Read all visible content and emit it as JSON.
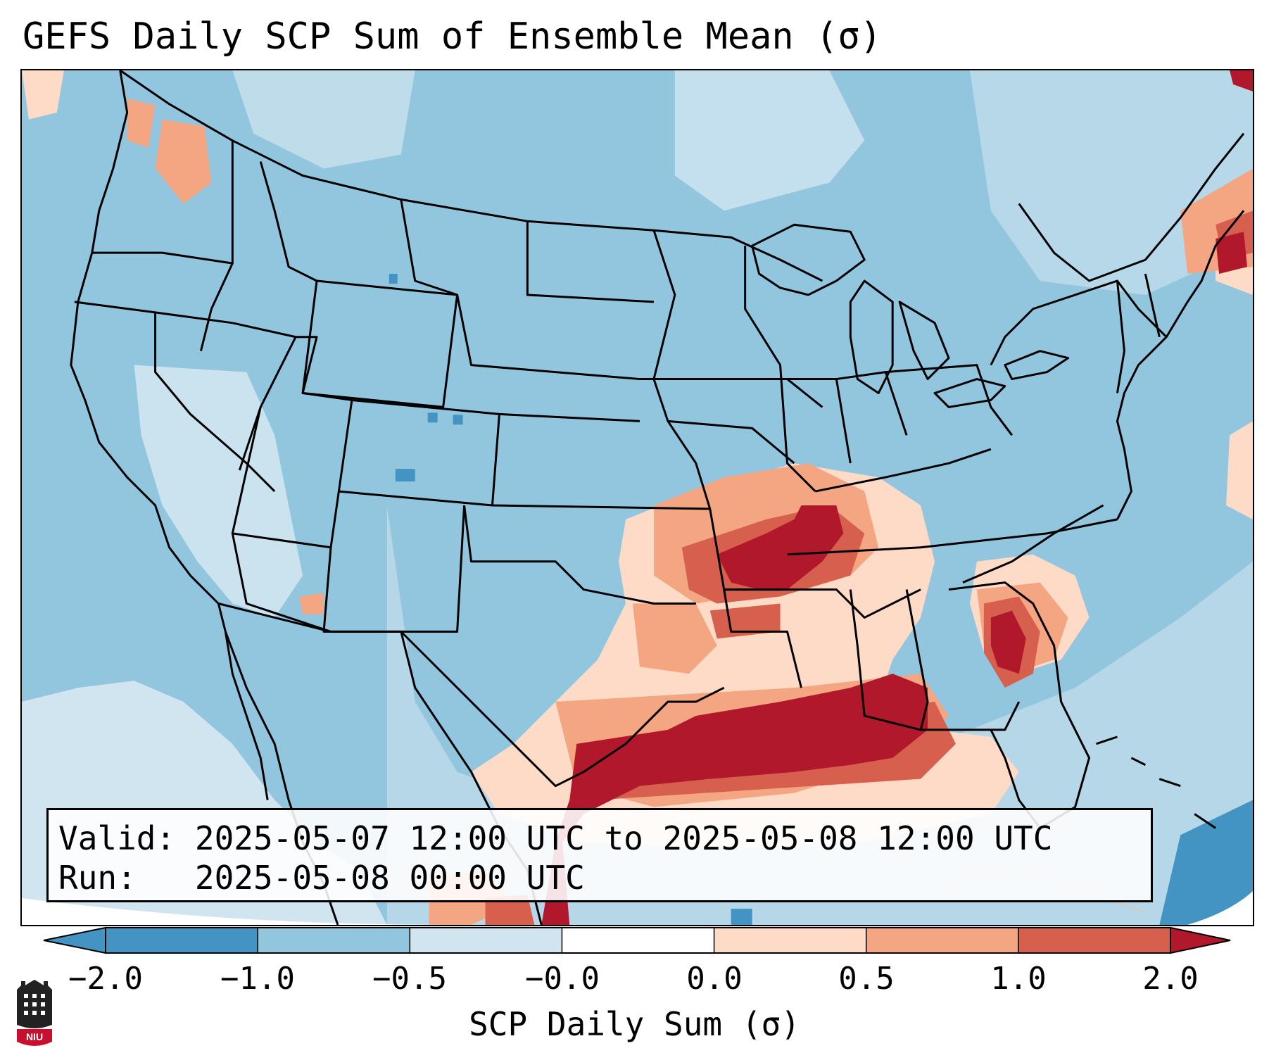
{
  "title": "GEFS Daily SCP Sum of Ensemble Mean (σ)",
  "info": {
    "valid_label": "Valid:",
    "valid_value": "2025-05-07 12:00 UTC to 2025-05-08 12:00 UTC",
    "run_label": "Run:",
    "run_value": "2025-05-08 00:00 UTC"
  },
  "colorbar": {
    "label": "SCP Daily Sum (σ)",
    "tick_labels": [
      "−2.0",
      "−1.0",
      "−0.5",
      "−0.0",
      "0.0",
      "0.5",
      "1.0",
      "2.0"
    ],
    "colors": [
      "#4393c3",
      "#92c5de",
      "#d1e5f0",
      "#ffffff",
      "#fddbc7",
      "#f4a582",
      "#d6604d",
      "#b2182b"
    ],
    "extend": "both"
  },
  "logo": {
    "text": "NIU",
    "color": "#c8102e"
  },
  "map": {
    "region": "CONUS",
    "background_color": "#92c5de",
    "features": [
      "state borders",
      "country borders",
      "coastlines",
      "great lakes"
    ],
    "highlights": [
      {
        "area": "Lower Mississippi Valley / Tennessee",
        "level": "2.0"
      },
      {
        "area": "Western Gulf of Mexico / Texas coast",
        "level": "2.0"
      },
      {
        "area": "Southeast Georgia / Northeast Florida",
        "level": "2.0"
      },
      {
        "area": "Arkansas / Louisiana",
        "level": "1.0"
      },
      {
        "area": "Pacific Northwest",
        "level": "0.5"
      },
      {
        "area": "New England / Maritimes",
        "level": "1.0"
      },
      {
        "area": "Southern Arizona",
        "level": "1.0"
      }
    ]
  }
}
